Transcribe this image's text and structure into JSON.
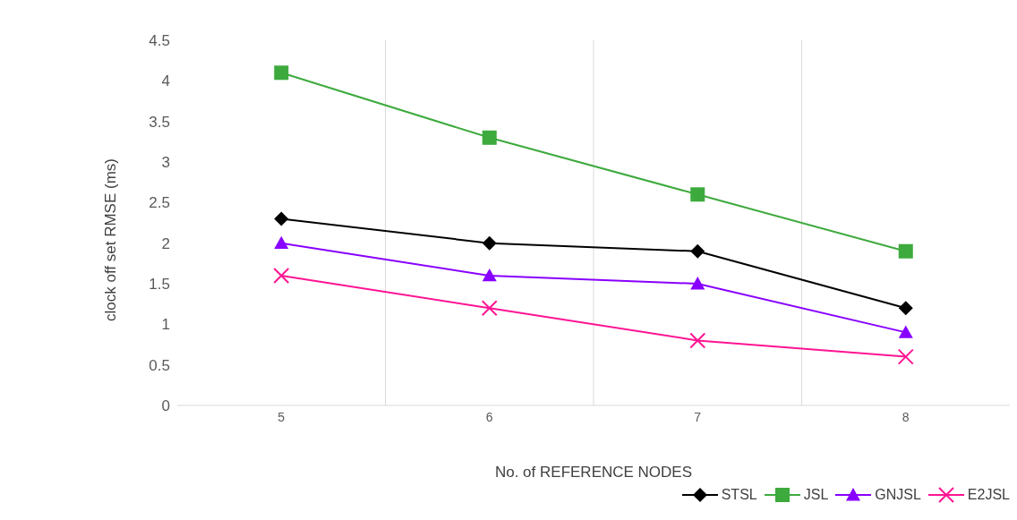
{
  "chart_data": {
    "type": "line",
    "xlabel": "No. of REFERENCE NODES",
    "ylabel": "clock off set RMSE (ms)",
    "categories": [
      "5",
      "6",
      "7",
      "8"
    ],
    "series": [
      {
        "name": "STSL",
        "color": "#000000",
        "marker": "diamond",
        "values": [
          2.3,
          2.0,
          1.9,
          1.2
        ]
      },
      {
        "name": "JSL",
        "color": "#3daa3d",
        "marker": "square",
        "values": [
          4.1,
          3.3,
          2.6,
          1.9
        ]
      },
      {
        "name": "GNJSL",
        "color": "#8800ff",
        "marker": "triangle",
        "values": [
          2.0,
          1.6,
          1.5,
          0.9
        ]
      },
      {
        "name": "E2JSL",
        "color": "#ff1493",
        "marker": "cross",
        "values": [
          1.6,
          1.2,
          0.8,
          0.6
        ]
      }
    ],
    "ylim": [
      0,
      4.5
    ],
    "yticks": [
      0,
      0.5,
      1,
      1.5,
      2,
      2.5,
      3,
      3.5,
      4,
      4.5
    ],
    "grid": "x",
    "legend": "bottom right"
  }
}
